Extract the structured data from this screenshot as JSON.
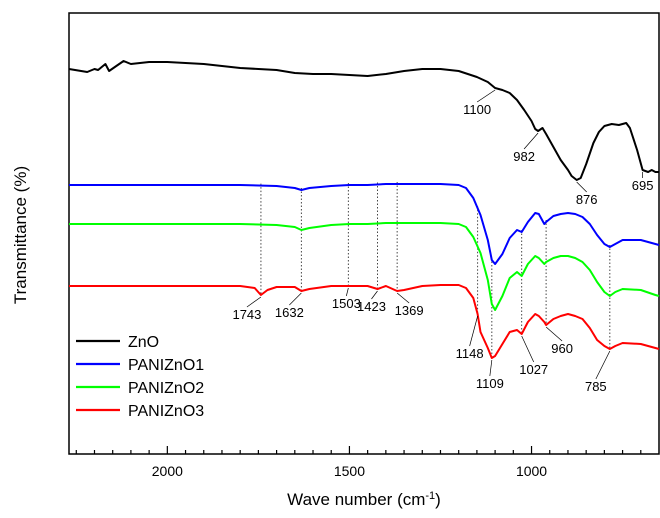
{
  "chart_data": {
    "type": "line",
    "title": "",
    "xlabel": "Wave number (cm",
    "xlabel_sup": "-1",
    "xlabel_end": ")",
    "ylabel": "Transmittance (%)",
    "xlim": [
      2270,
      650
    ],
    "x_reversed": true,
    "y_ticks_labeled": false,
    "x_ticks": [
      2000,
      1500,
      1000
    ],
    "x_tick_labels": [
      "2000",
      "1500",
      "1000"
    ],
    "legend_position": "bottom-left",
    "series": [
      {
        "name": "ZnO",
        "color": "#000000",
        "points": [
          [
            2270,
            69
          ],
          [
            2220,
            72
          ],
          [
            2200,
            69
          ],
          [
            2190,
            70
          ],
          [
            2170,
            64
          ],
          [
            2160,
            71
          ],
          [
            2140,
            66
          ],
          [
            2120,
            61
          ],
          [
            2100,
            64
          ],
          [
            2050,
            62
          ],
          [
            2000,
            62
          ],
          [
            1950,
            63
          ],
          [
            1900,
            64
          ],
          [
            1850,
            66
          ],
          [
            1800,
            68
          ],
          [
            1750,
            69
          ],
          [
            1700,
            70
          ],
          [
            1650,
            73
          ],
          [
            1600,
            74
          ],
          [
            1550,
            74
          ],
          [
            1500,
            75
          ],
          [
            1450,
            76
          ],
          [
            1400,
            74
          ],
          [
            1350,
            71
          ],
          [
            1300,
            69
          ],
          [
            1250,
            69
          ],
          [
            1200,
            71
          ],
          [
            1150,
            77
          ],
          [
            1120,
            82
          ],
          [
            1100,
            88
          ],
          [
            1080,
            90
          ],
          [
            1060,
            93
          ],
          [
            1040,
            100
          ],
          [
            1020,
            110
          ],
          [
            1000,
            121
          ],
          [
            990,
            129
          ],
          [
            982,
            131
          ],
          [
            970,
            128
          ],
          [
            960,
            134
          ],
          [
            940,
            147
          ],
          [
            920,
            160
          ],
          [
            900,
            170
          ],
          [
            890,
            176
          ],
          [
            876,
            180
          ],
          [
            865,
            178
          ],
          [
            850,
            164
          ],
          [
            830,
            143
          ],
          [
            815,
            132
          ],
          [
            800,
            126
          ],
          [
            780,
            124
          ],
          [
            760,
            125
          ],
          [
            740,
            123
          ],
          [
            730,
            128
          ],
          [
            710,
            150
          ],
          [
            695,
            170
          ],
          [
            680,
            172
          ],
          [
            670,
            170
          ],
          [
            660,
            172
          ],
          [
            650,
            172
          ]
        ],
        "annotations": [
          {
            "label": "1100",
            "x": 1100
          },
          {
            "label": "982",
            "x": 982
          },
          {
            "label": "876",
            "x": 876
          },
          {
            "label": "695",
            "x": 695
          }
        ]
      },
      {
        "name": "PANIZnO1",
        "color": "#0000ff",
        "points": [
          [
            2270,
            185
          ],
          [
            2000,
            185
          ],
          [
            1800,
            185
          ],
          [
            1700,
            186
          ],
          [
            1650,
            188
          ],
          [
            1632,
            190
          ],
          [
            1610,
            188
          ],
          [
            1550,
            186
          ],
          [
            1500,
            185
          ],
          [
            1450,
            185
          ],
          [
            1400,
            184
          ],
          [
            1300,
            184
          ],
          [
            1250,
            184
          ],
          [
            1200,
            185
          ],
          [
            1180,
            188
          ],
          [
            1160,
            198
          ],
          [
            1140,
            215
          ],
          [
            1120,
            240
          ],
          [
            1109,
            260
          ],
          [
            1100,
            264
          ],
          [
            1080,
            254
          ],
          [
            1060,
            238
          ],
          [
            1040,
            230
          ],
          [
            1027,
            232
          ],
          [
            1010,
            222
          ],
          [
            990,
            213
          ],
          [
            980,
            214
          ],
          [
            965,
            224
          ],
          [
            960,
            222
          ],
          [
            940,
            216
          ],
          [
            920,
            214
          ],
          [
            900,
            213
          ],
          [
            880,
            214
          ],
          [
            860,
            217
          ],
          [
            840,
            224
          ],
          [
            820,
            235
          ],
          [
            800,
            244
          ],
          [
            785,
            247
          ],
          [
            770,
            244
          ],
          [
            750,
            240
          ],
          [
            700,
            240
          ],
          [
            660,
            244
          ],
          [
            650,
            245
          ]
        ]
      },
      {
        "name": "PANIZnO2",
        "color": "#00ff00",
        "points": [
          [
            2270,
            224
          ],
          [
            2000,
            224
          ],
          [
            1800,
            224
          ],
          [
            1700,
            225
          ],
          [
            1650,
            227
          ],
          [
            1632,
            230
          ],
          [
            1610,
            228
          ],
          [
            1550,
            225
          ],
          [
            1500,
            224
          ],
          [
            1450,
            224
          ],
          [
            1400,
            223
          ],
          [
            1300,
            223
          ],
          [
            1250,
            223
          ],
          [
            1200,
            224
          ],
          [
            1180,
            227
          ],
          [
            1160,
            237
          ],
          [
            1140,
            253
          ],
          [
            1120,
            280
          ],
          [
            1109,
            304
          ],
          [
            1100,
            310
          ],
          [
            1080,
            296
          ],
          [
            1060,
            278
          ],
          [
            1040,
            272
          ],
          [
            1027,
            276
          ],
          [
            1010,
            264
          ],
          [
            990,
            256
          ],
          [
            980,
            258
          ],
          [
            965,
            264
          ],
          [
            960,
            262
          ],
          [
            940,
            258
          ],
          [
            920,
            256
          ],
          [
            900,
            256
          ],
          [
            880,
            258
          ],
          [
            860,
            262
          ],
          [
            840,
            270
          ],
          [
            820,
            282
          ],
          [
            800,
            292
          ],
          [
            785,
            296
          ],
          [
            770,
            292
          ],
          [
            750,
            289
          ],
          [
            700,
            290
          ],
          [
            660,
            295
          ],
          [
            650,
            296
          ]
        ]
      },
      {
        "name": "PANIZnO3",
        "color": "#ff0000",
        "points": [
          [
            2270,
            286
          ],
          [
            2000,
            286
          ],
          [
            1800,
            286
          ],
          [
            1760,
            288
          ],
          [
            1743,
            295
          ],
          [
            1725,
            290
          ],
          [
            1700,
            287
          ],
          [
            1650,
            287
          ],
          [
            1632,
            291
          ],
          [
            1610,
            289
          ],
          [
            1550,
            286
          ],
          [
            1503,
            286
          ],
          [
            1450,
            286
          ],
          [
            1423,
            289
          ],
          [
            1400,
            286
          ],
          [
            1369,
            291
          ],
          [
            1350,
            290
          ],
          [
            1300,
            286
          ],
          [
            1250,
            285
          ],
          [
            1200,
            285
          ],
          [
            1180,
            288
          ],
          [
            1160,
            298
          ],
          [
            1148,
            314
          ],
          [
            1140,
            332
          ],
          [
            1120,
            348
          ],
          [
            1109,
            358
          ],
          [
            1100,
            356
          ],
          [
            1080,
            344
          ],
          [
            1060,
            332
          ],
          [
            1040,
            330
          ],
          [
            1027,
            334
          ],
          [
            1010,
            322
          ],
          [
            990,
            314
          ],
          [
            980,
            316
          ],
          [
            965,
            322
          ],
          [
            960,
            325
          ],
          [
            940,
            319
          ],
          [
            920,
            316
          ],
          [
            900,
            314
          ],
          [
            880,
            316
          ],
          [
            860,
            319
          ],
          [
            840,
            328
          ],
          [
            820,
            340
          ],
          [
            800,
            346
          ],
          [
            785,
            349
          ],
          [
            770,
            346
          ],
          [
            750,
            343
          ],
          [
            700,
            344
          ],
          [
            660,
            348
          ],
          [
            650,
            349
          ]
        ]
      }
    ],
    "peak_labels": [
      {
        "label": "1743",
        "x": 1743
      },
      {
        "label": "1632",
        "x": 1632
      },
      {
        "label": "1503",
        "x": 1503
      },
      {
        "label": "1423",
        "x": 1423
      },
      {
        "label": "1369",
        "x": 1369
      },
      {
        "label": "1148",
        "x": 1148
      },
      {
        "label": "1109",
        "x": 1109
      },
      {
        "label": "1027",
        "x": 1027
      },
      {
        "label": "960",
        "x": 960
      },
      {
        "label": "785",
        "x": 785
      }
    ]
  }
}
